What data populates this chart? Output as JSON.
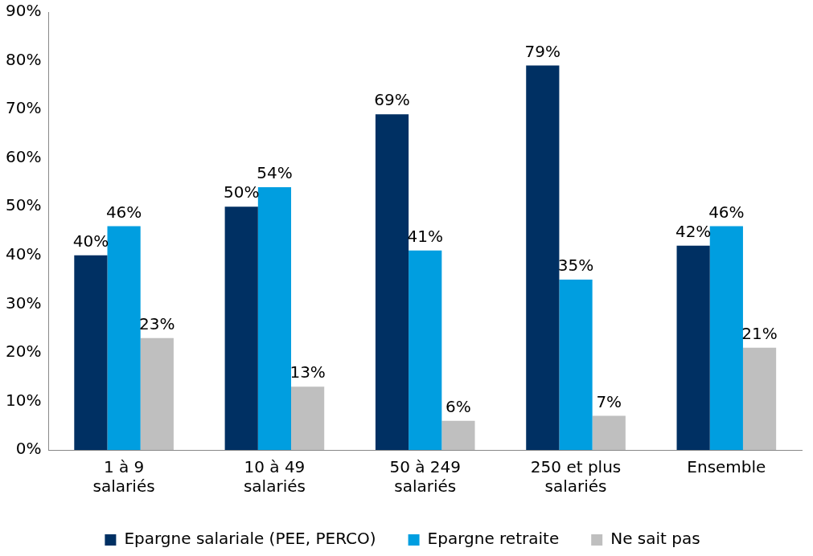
{
  "chart_data": {
    "type": "bar",
    "categories": [
      "1 à 9\nsalariés",
      "10 à 49\nsalariés",
      "50 à 249\nsalariés",
      "250 et plus\nsalariés",
      "Ensemble"
    ],
    "series": [
      {
        "name": "Epargne salariale (PEE, PERCO)",
        "color": "#003063",
        "values": [
          40,
          50,
          69,
          79,
          42
        ],
        "value_labels": [
          "40%",
          "50%",
          "69%",
          "79%",
          "42%"
        ]
      },
      {
        "name": "Epargne retraite",
        "color": "#009ee0",
        "values": [
          46,
          54,
          41,
          35,
          46
        ],
        "value_labels": [
          "46%",
          "54%",
          "41%",
          "35%",
          "46%"
        ]
      },
      {
        "name": "Ne sait pas",
        "color": "#bfbfbf",
        "values": [
          23,
          13,
          6,
          7,
          21
        ],
        "value_labels": [
          "23%",
          "13%",
          "6%",
          "7%",
          "21%"
        ]
      }
    ],
    "ylim": [
      0,
      90
    ],
    "yticks": [
      {
        "value": 0,
        "label": "0%"
      },
      {
        "value": 10,
        "label": "10%"
      },
      {
        "value": 20,
        "label": "20%"
      },
      {
        "value": 30,
        "label": "30%"
      },
      {
        "value": 40,
        "label": "40%"
      },
      {
        "value": 50,
        "label": "50%"
      },
      {
        "value": 60,
        "label": "60%"
      },
      {
        "value": 70,
        "label": "70%"
      },
      {
        "value": 80,
        "label": "80%"
      },
      {
        "value": 90,
        "label": "90%"
      }
    ],
    "grid": false,
    "legend": "bottom"
  }
}
